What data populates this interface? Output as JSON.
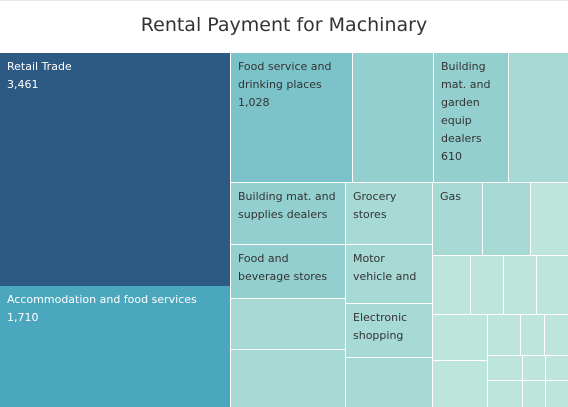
{
  "chart_data": {
    "type": "treemap",
    "title": "Rental Payment for Machinary",
    "colors": {
      "dark": "#2d5a85",
      "mid": "#4aa7bd",
      "light1": "#7cc3c9",
      "light2": "#93cfcf",
      "light3": "#a7dad5",
      "light4": "#bde5dc",
      "text_dark": "#ffffff",
      "text_light": "#333333"
    },
    "tiles": [
      {
        "name": "Retail Trade",
        "value": 3461,
        "value_label": "3,461",
        "labels": [
          "Retail Trade",
          "3,461"
        ]
      },
      {
        "name": "Accommodation and food services",
        "value": 1710,
        "value_label": "1,710",
        "labels": [
          "Accommodation and food services",
          "1,710"
        ]
      },
      {
        "name": "Food service and drinking places",
        "value": 1028,
        "value_label": "1,028",
        "labels": [
          "Food service and",
          "drinking places",
          "1,028"
        ]
      },
      {
        "name": "Building mat. and garden equip dealers",
        "value": 610,
        "value_label": "610",
        "labels": [
          "Building",
          "mat. and",
          "garden",
          "equip",
          "dealers",
          "610"
        ]
      },
      {
        "name": "Building mat. and supplies dealers",
        "labels": [
          "Building mat. and",
          "supplies dealers"
        ]
      },
      {
        "name": "Grocery stores",
        "labels": [
          "Grocery",
          "stores"
        ]
      },
      {
        "name": "Gas",
        "labels": [
          "Gas"
        ]
      },
      {
        "name": "Food and beverage stores",
        "labels": [
          "Food and",
          "beverage stores"
        ]
      },
      {
        "name": "Motor vehicle and",
        "labels": [
          "Motor",
          "vehicle and"
        ]
      },
      {
        "name": "Electronic shopping",
        "labels": [
          "Electronic",
          "shopping"
        ]
      }
    ]
  }
}
